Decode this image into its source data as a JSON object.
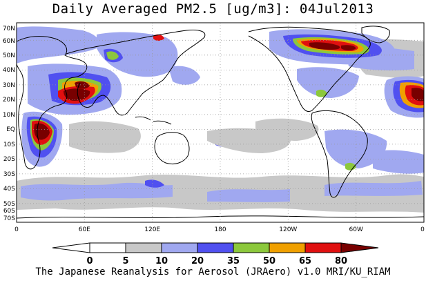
{
  "title": "Daily Averaged PM2.5 [ug/m3]: 04Jul2013",
  "footer": "The Japanese Reanalysis for Aerosol (JRAero) v1.0 MRI/KU_RIAM",
  "lat_labels": [
    "70N",
    "60N",
    "50N",
    "40N",
    "30N",
    "20N",
    "10N",
    "EQ",
    "10S",
    "20S",
    "30S",
    "40S",
    "50S",
    "60S",
    "70S"
  ],
  "lon_labels": [
    "0",
    "60E",
    "120E",
    "180",
    "120W",
    "60W",
    "0"
  ],
  "colorbar": {
    "levels": [
      "0",
      "5",
      "10",
      "20",
      "35",
      "50",
      "65",
      "80"
    ],
    "colors": [
      "#ffffff",
      "#c8c8c8",
      "#a0a8f0",
      "#5050f0",
      "#8cc83c",
      "#f0a000",
      "#e01010",
      "#780000"
    ]
  },
  "colors": {
    "light_gray": "#c8c8c8",
    "light_blue": "#a0a8f0",
    "blue": "#5050f0",
    "green": "#8cc83c",
    "orange": "#f0a000",
    "red": "#e01010",
    "dark_red": "#780000",
    "coast": "#000000"
  }
}
